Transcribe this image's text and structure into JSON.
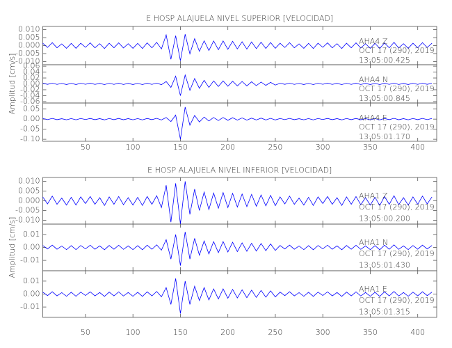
{
  "chart_data": [
    {
      "type": "line",
      "title": "E HOSP ALAJUELA NIVEL SUPERIOR [VELOCIDAD]",
      "y_label": "Amplitud [cm/s]",
      "xlim": [
        5,
        420
      ],
      "xticks": [
        50,
        100,
        150,
        200,
        250,
        300,
        350,
        400
      ],
      "x": [
        5,
        10,
        15,
        20,
        25,
        30,
        35,
        40,
        45,
        50,
        55,
        60,
        65,
        70,
        75,
        80,
        85,
        90,
        95,
        100,
        105,
        110,
        115,
        120,
        125,
        130,
        135,
        140,
        145,
        150,
        155,
        160,
        165,
        170,
        175,
        180,
        185,
        190,
        195,
        200,
        205,
        210,
        215,
        220,
        225,
        230,
        235,
        240,
        245,
        250,
        255,
        260,
        265,
        270,
        275,
        280,
        285,
        290,
        295,
        300,
        305,
        310,
        315,
        320,
        325,
        330,
        335,
        340,
        345,
        350,
        355,
        360,
        365,
        370,
        375,
        380,
        385,
        390,
        395,
        400,
        405,
        410,
        415
      ],
      "series": [
        {
          "name": "AHA4 Z",
          "date": "OCT 17 (290), 2019",
          "time": "13:05:00.425",
          "color": "#0000ff",
          "ylim": [
            -0.012,
            0.012
          ],
          "yticks": [
            {
              "value": 0.01,
              "label": "0.010"
            },
            0.005,
            {
              "value": 0,
              "label": "0.000"
            },
            -0.005,
            {
              "value": -0.01,
              "label": "-0.010"
            }
          ],
          "values": [
            0.0015,
            -0.0012,
            0.0018,
            -0.0014,
            0.0011,
            -0.0017,
            0.0014,
            -0.0017,
            0.0015,
            -0.0011,
            0.0017,
            -0.0014,
            0.0012,
            -0.0018,
            0.0015,
            -0.0014,
            0.0017,
            -0.0015,
            0.0012,
            -0.0017,
            0.0014,
            -0.0018,
            0.0017,
            -0.0014,
            0.002,
            -0.0021,
            0.0067,
            -0.0086,
            0.0062,
            -0.0095,
            0.0071,
            -0.0052,
            0.0043,
            -0.0036,
            0.003,
            -0.0031,
            0.0029,
            -0.0026,
            0.0029,
            -0.0023,
            0.0027,
            -0.0021,
            0.0024,
            -0.0022,
            0.0023,
            -0.0019,
            0.0021,
            -0.0018,
            0.0019,
            -0.0017,
            0.0015,
            -0.0012,
            0.0018,
            -0.0014,
            0.0011,
            -0.0017,
            0.0014,
            -0.0018,
            0.0015,
            -0.0011,
            0.0017,
            -0.0014,
            0.0012,
            -0.0018,
            0.0015,
            -0.0014,
            0.0017,
            -0.0015,
            0.0012,
            -0.0017,
            0.0014,
            -0.0018,
            0.0017,
            -0.0014,
            0.002,
            -0.0015,
            0.0012,
            -0.0017,
            0.0015,
            -0.0014,
            0.0018,
            -0.0012,
            0.0015
          ]
        },
        {
          "name": "AHA4 N",
          "date": "OCT 17 (290), 2019",
          "time": "13:05:00.845",
          "color": "#0000ff",
          "ylim": [
            -0.065,
            0.065
          ],
          "yticks": [
            0.06,
            0.04,
            0.02,
            {
              "value": 0,
              "label": "0.00"
            },
            -0.02,
            -0.04,
            -0.06
          ],
          "values": [
            0.002,
            -0.0016,
            0.0024,
            -0.0018,
            0.0014,
            -0.0022,
            0.0018,
            -0.0022,
            0.002,
            -0.0014,
            0.0022,
            -0.0018,
            0.0016,
            -0.0024,
            0.002,
            -0.0018,
            0.0022,
            -0.002,
            0.0016,
            -0.0022,
            0.0018,
            -0.0024,
            0.0022,
            -0.0018,
            0.0026,
            -0.0028,
            0.008,
            -0.012,
            0.026,
            -0.04,
            0.03,
            -0.022,
            0.018,
            -0.015,
            0.012,
            -0.012,
            0.01,
            -0.009,
            0.01,
            -0.008,
            0.009,
            -0.007,
            0.008,
            -0.007,
            0.007,
            -0.006,
            0.006,
            -0.005,
            0.005,
            -0.004,
            0.002,
            -0.0016,
            0.0024,
            -0.0018,
            0.0014,
            -0.0022,
            0.0018,
            -0.0024,
            0.002,
            -0.0014,
            0.0022,
            -0.0018,
            0.0016,
            -0.0024,
            0.002,
            -0.0018,
            0.0022,
            -0.002,
            0.0016,
            -0.0022,
            0.0018,
            -0.0024,
            0.0022,
            -0.0018,
            0.0026,
            -0.002,
            0.0016,
            -0.0022,
            0.002,
            -0.0018,
            0.0024,
            -0.0016,
            0.002
          ]
        },
        {
          "name": "AHA4 E",
          "date": "OCT 17 (290), 2019",
          "time": "13:05:01.170",
          "color": "#0000ff",
          "ylim": [
            -0.11,
            0.08
          ],
          "yticks": [
            0.05,
            {
              "value": 0,
              "label": "0.00"
            },
            -0.05,
            {
              "value": -0.1,
              "label": "-0.10"
            }
          ],
          "values": [
            0.003,
            -0.0024,
            0.0036,
            -0.0027,
            0.0021,
            -0.0033,
            0.0027,
            -0.0033,
            0.003,
            -0.0021,
            0.0033,
            -0.0027,
            0.0024,
            -0.0036,
            0.003,
            -0.0027,
            0.0033,
            -0.003,
            0.0024,
            -0.0033,
            0.0027,
            -0.0036,
            0.0033,
            -0.0027,
            0.0039,
            -0.0042,
            0.008,
            -0.012,
            0.02,
            -0.1,
            0.06,
            -0.03,
            0.018,
            -0.014,
            0.01,
            -0.009,
            0.008,
            -0.007,
            0.008,
            -0.006,
            0.007,
            -0.005,
            0.006,
            -0.005,
            0.005,
            -0.004,
            0.005,
            -0.004,
            0.004,
            -0.004,
            0.003,
            -0.0024,
            0.0036,
            -0.0027,
            0.0021,
            -0.0033,
            0.0027,
            -0.0036,
            0.003,
            -0.0021,
            0.0033,
            -0.0027,
            0.0024,
            -0.0036,
            0.003,
            -0.0027,
            0.0033,
            -0.003,
            0.0024,
            -0.0033,
            0.0027,
            -0.0036,
            0.0033,
            -0.0027,
            0.0039,
            -0.003,
            0.0024,
            -0.0033,
            0.003,
            -0.0027,
            0.0036,
            -0.0024,
            0.003
          ]
        }
      ]
    },
    {
      "type": "line",
      "title": "E HOSP ALAJUELA NIVEL INFERIOR [VELOCIDAD]",
      "y_label": "Amplitud [cm/s]",
      "xlim": [
        5,
        420
      ],
      "xticks": [
        50,
        100,
        150,
        200,
        250,
        300,
        350,
        400
      ],
      "x": [
        5,
        10,
        15,
        20,
        25,
        30,
        35,
        40,
        45,
        50,
        55,
        60,
        65,
        70,
        75,
        80,
        85,
        90,
        95,
        100,
        105,
        110,
        115,
        120,
        125,
        130,
        135,
        140,
        145,
        150,
        155,
        160,
        165,
        170,
        175,
        180,
        185,
        190,
        195,
        200,
        205,
        210,
        215,
        220,
        225,
        230,
        235,
        240,
        245,
        250,
        255,
        260,
        265,
        270,
        275,
        280,
        285,
        290,
        295,
        300,
        305,
        310,
        315,
        320,
        325,
        330,
        335,
        340,
        345,
        350,
        355,
        360,
        365,
        370,
        375,
        380,
        385,
        390,
        395,
        400,
        405,
        410,
        415
      ],
      "series": [
        {
          "name": "AHA1 Z",
          "date": "OCT 17 (290), 2019",
          "time": "13:05:00.200",
          "color": "#0000ff",
          "ylim": [
            -0.012,
            0.012
          ],
          "yticks": [
            {
              "value": 0.01,
              "label": "0.010"
            },
            0.005,
            {
              "value": 0,
              "label": "0.000"
            },
            -0.005,
            {
              "value": -0.01,
              "label": "-0.010"
            }
          ],
          "values": [
            0.002,
            -0.0016,
            0.0024,
            -0.0018,
            0.0014,
            -0.0022,
            0.0018,
            -0.0022,
            0.002,
            -0.0014,
            0.0022,
            -0.0018,
            0.0016,
            -0.0024,
            0.002,
            -0.0018,
            0.0022,
            -0.002,
            0.0016,
            -0.0022,
            0.0018,
            -0.0024,
            0.0022,
            -0.0018,
            0.0026,
            -0.0035,
            0.008,
            -0.011,
            0.009,
            -0.012,
            0.01,
            -0.007,
            0.006,
            -0.005,
            0.0045,
            -0.0045,
            0.004,
            -0.0038,
            0.0042,
            -0.0035,
            0.0038,
            -0.0032,
            0.0035,
            -0.003,
            0.0033,
            -0.0028,
            0.003,
            -0.0026,
            0.0028,
            -0.0025,
            0.002,
            -0.0016,
            0.0024,
            -0.0018,
            0.0014,
            -0.0022,
            0.0018,
            -0.0024,
            0.002,
            -0.0014,
            0.0022,
            -0.0018,
            0.0016,
            -0.0024,
            0.002,
            -0.0018,
            0.0022,
            -0.002,
            0.0016,
            -0.0022,
            0.0018,
            -0.0024,
            0.0022,
            -0.0018,
            0.0026,
            -0.002,
            0.0016,
            -0.0022,
            0.002,
            -0.0018,
            0.0024,
            -0.0016,
            0.002
          ]
        },
        {
          "name": "AHA1 N",
          "date": "OCT 17 (290), 2019",
          "time": "13:05:01.430",
          "color": "#0000ff",
          "ylim": [
            -0.018,
            0.018
          ],
          "yticks": [
            0.01,
            {
              "value": 0,
              "label": "0.00"
            },
            -0.01
          ],
          "values": [
            0.0015,
            -0.0012,
            0.0018,
            -0.0014,
            0.0011,
            -0.0017,
            0.0014,
            -0.0017,
            0.0015,
            -0.0011,
            0.0017,
            -0.0014,
            0.0012,
            -0.0018,
            0.0015,
            -0.0014,
            0.0017,
            -0.0015,
            0.0012,
            -0.0017,
            0.0014,
            -0.0018,
            0.0017,
            -0.0014,
            0.002,
            -0.0021,
            0.006,
            -0.009,
            0.01,
            -0.014,
            0.012,
            -0.009,
            0.007,
            -0.006,
            0.005,
            -0.005,
            0.0045,
            -0.004,
            0.0045,
            -0.0035,
            0.004,
            -0.0032,
            0.0035,
            -0.003,
            0.0032,
            -0.0028,
            0.003,
            -0.0025,
            0.0027,
            -0.0023,
            0.0015,
            -0.0012,
            0.0018,
            -0.0014,
            0.0011,
            -0.0017,
            0.0014,
            -0.0018,
            0.0015,
            -0.0011,
            0.0017,
            -0.0014,
            0.0012,
            -0.0018,
            0.0015,
            -0.0014,
            0.0017,
            -0.0015,
            0.0012,
            -0.0017,
            0.0014,
            -0.0018,
            0.0017,
            -0.0014,
            0.002,
            -0.0015,
            0.0012,
            -0.0017,
            0.0015,
            -0.0014,
            0.0018,
            -0.0012,
            0.0015
          ]
        },
        {
          "name": "AHA1 E",
          "date": "OCT 17 (290), 2019",
          "time": "13:05:01.315",
          "color": "#0000ff",
          "ylim": [
            -0.018,
            0.018
          ],
          "yticks": [
            0.01,
            {
              "value": 0,
              "label": "0.00"
            },
            -0.01
          ],
          "values": [
            0.0015,
            -0.0012,
            0.0018,
            -0.0014,
            0.0011,
            -0.0017,
            0.0014,
            -0.0017,
            0.0015,
            -0.0011,
            0.0017,
            -0.0014,
            0.0012,
            -0.0018,
            0.0015,
            -0.0014,
            0.0017,
            -0.0015,
            0.0012,
            -0.0017,
            0.0014,
            -0.0018,
            0.0017,
            -0.0014,
            0.002,
            -0.0021,
            0.005,
            -0.008,
            0.012,
            -0.015,
            0.01,
            -0.008,
            0.006,
            -0.005,
            0.005,
            -0.0045,
            0.004,
            -0.0038,
            0.004,
            -0.0032,
            0.0036,
            -0.003,
            0.0033,
            -0.0028,
            0.003,
            -0.0026,
            0.0028,
            -0.0024,
            0.0025,
            -0.0022,
            0.0015,
            -0.0012,
            0.0018,
            -0.0014,
            0.0011,
            -0.0017,
            0.0014,
            -0.0018,
            0.0015,
            -0.0011,
            0.0017,
            -0.0014,
            0.0012,
            -0.0018,
            0.0015,
            -0.0014,
            0.0017,
            -0.0015,
            0.0012,
            -0.0017,
            0.0014,
            -0.0018,
            0.0017,
            -0.0014,
            0.002,
            -0.0015,
            0.0012,
            -0.0017,
            0.0015,
            -0.0014,
            0.0018,
            -0.0012,
            0.0015
          ]
        }
      ]
    }
  ]
}
